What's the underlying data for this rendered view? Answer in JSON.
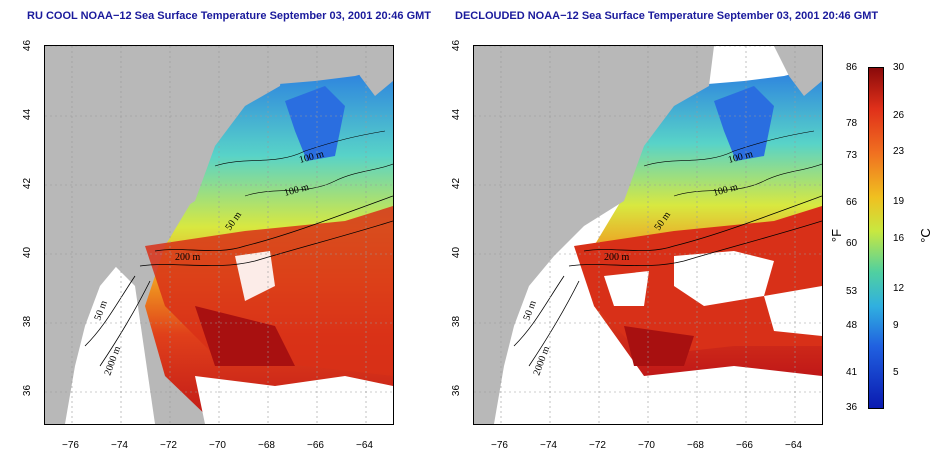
{
  "panels": [
    {
      "title": "RU COOL NOAA−12 Sea Surface Temperature September 03, 2001 20:46 GMT"
    },
    {
      "title": "DECLOUDED NOAA−12 Sea Surface Temperature September 03, 2001 20:46 GMT"
    }
  ],
  "x_ticks": [
    "−76",
    "−74",
    "−72",
    "−70",
    "−68",
    "−66",
    "−64"
  ],
  "y_ticks": [
    "36",
    "38",
    "40",
    "42",
    "44",
    "46"
  ],
  "contour_labels": [
    "100 m",
    "100 m",
    "50 m",
    "200 m",
    "50 m",
    "2000 m"
  ],
  "colorbar": {
    "fahrenheit_label": "°F",
    "celsius_label": "°C",
    "fahrenheit_ticks": [
      "86",
      "78",
      "73",
      "66",
      "60",
      "53",
      "48",
      "41",
      "36"
    ],
    "celsius_ticks": [
      "30",
      "26",
      "23",
      "19",
      "16",
      "12",
      "9",
      "5"
    ]
  },
  "colors": {
    "land": "#b8b8b8",
    "warm": "#c81e1e",
    "cold": "#1c3cdc"
  }
}
